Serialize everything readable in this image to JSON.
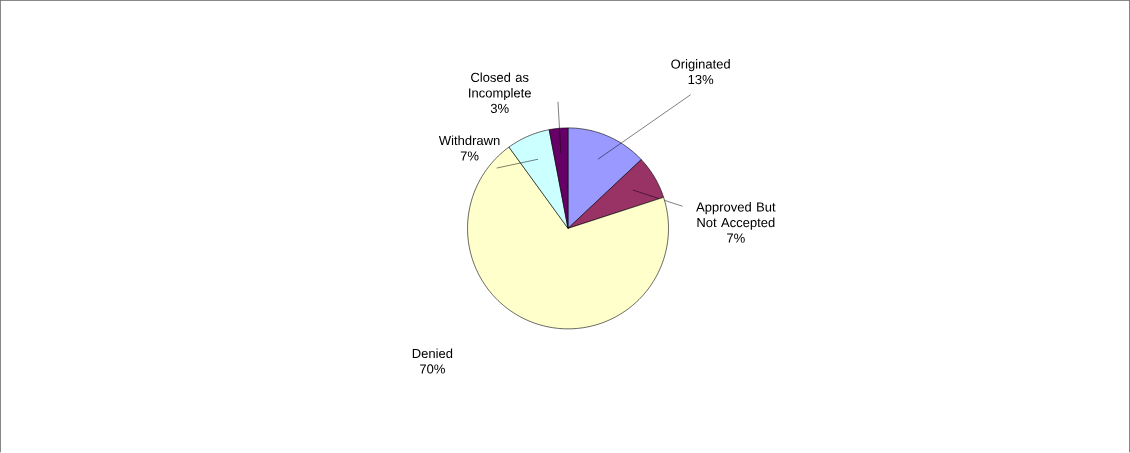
{
  "chart_data": {
    "type": "pie",
    "categories": [
      "Originated",
      "Approved But Not Accepted",
      "Denied",
      "Withdrawn",
      "Closed as Incomplete"
    ],
    "values": [
      13,
      7,
      70,
      7,
      3
    ],
    "value_labels": [
      "13%",
      "7%",
      "70%",
      "7%",
      "3%"
    ],
    "colors": [
      "#9999ff",
      "#993366",
      "#ffffcc",
      "#ccffff",
      "#660066"
    ]
  }
}
